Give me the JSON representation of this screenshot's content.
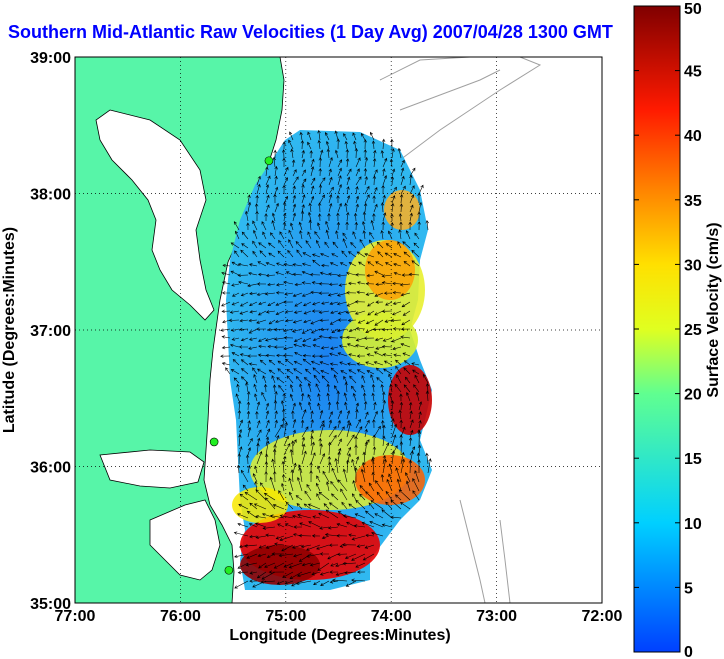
{
  "title": "Southern Mid-Atlantic Raw Velocities (1 Day Avg) 2007/04/28 1300 GMT",
  "axes": {
    "xlabel": "Longitude (Degrees:Minutes)",
    "ylabel": "Latitude (Degrees:Minutes)",
    "xticks": [
      "77:00",
      "76:00",
      "75:00",
      "74:00",
      "73:00",
      "72:00"
    ],
    "yticks": [
      "39:00",
      "38:00",
      "37:00",
      "36:00",
      "35:00"
    ],
    "xlim": [
      -77,
      -72
    ],
    "ylim": [
      35,
      39
    ]
  },
  "colorbar": {
    "label": "Surface Velocity (cm/s)",
    "ticks": [
      "50",
      "45",
      "40",
      "35",
      "30",
      "25",
      "20",
      "15",
      "10",
      "5",
      "0"
    ],
    "range": [
      0,
      50
    ]
  },
  "colors": {
    "land": "#57f5a8",
    "title": "#0000ff",
    "coast": "#000000",
    "bathymetry": "#a0a0a0",
    "station": "#22ee22"
  },
  "stations": [
    {
      "lon": -75.16,
      "lat": 38.24
    },
    {
      "lon": -75.68,
      "lat": 36.18
    },
    {
      "lon": -75.54,
      "lat": 35.24
    }
  ],
  "chart_data": {
    "type": "heatmap",
    "title": "Southern Mid-Atlantic Raw Velocities (1 Day Avg) 2007/04/28 1300 GMT",
    "xlabel": "Longitude (Degrees:Minutes)",
    "ylabel": "Latitude (Degrees:Minutes)",
    "colorbar_label": "Surface Velocity (cm/s)",
    "colorbar_range": [
      0,
      50
    ],
    "xlim": [
      -77,
      -72
    ],
    "ylim": [
      35,
      39
    ],
    "grid": true
  }
}
